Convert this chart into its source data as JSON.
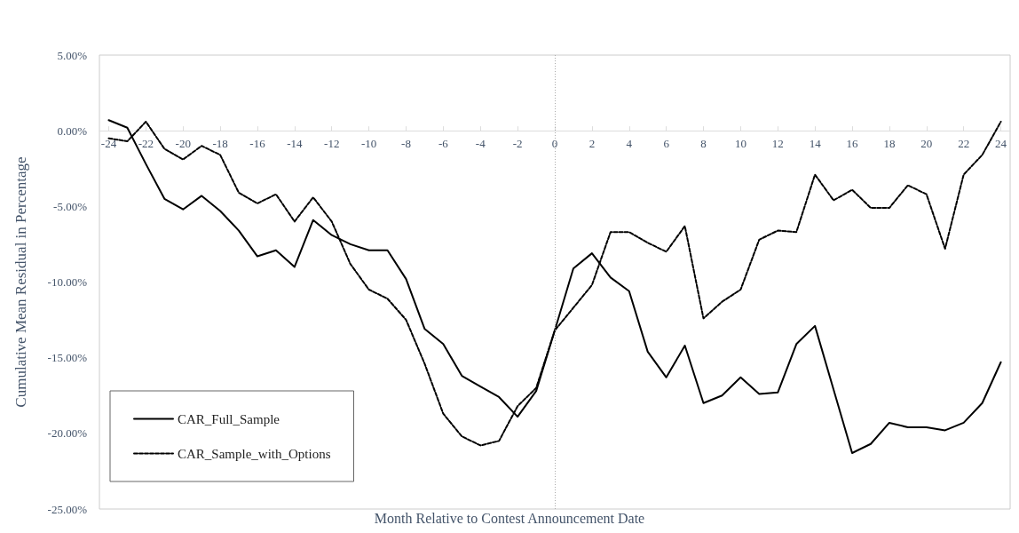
{
  "chart_data": {
    "type": "line",
    "xlabel": "Month Relative to Contest Announcement Date",
    "ylabel": "Cumulative Mean Residual in Percentage",
    "x": [
      -24,
      -23,
      -22,
      -21,
      -20,
      -19,
      -18,
      -17,
      -16,
      -15,
      -14,
      -13,
      -12,
      -11,
      -10,
      -9,
      -8,
      -7,
      -6,
      -5,
      -4,
      -3,
      -2,
      -1,
      0,
      1,
      2,
      3,
      4,
      5,
      6,
      7,
      8,
      9,
      10,
      11,
      12,
      13,
      14,
      15,
      16,
      17,
      18,
      19,
      20,
      21,
      22,
      23,
      24
    ],
    "series": [
      {
        "name": "CAR_Full_Sample",
        "color": "#000000",
        "line_style": "solid",
        "values": [
          0.7,
          0.2,
          -2.2,
          -4.5,
          -5.2,
          -4.3,
          -5.3,
          -6.6,
          -8.3,
          -7.9,
          -9.0,
          -5.9,
          -6.9,
          -7.5,
          -7.9,
          -7.9,
          -9.8,
          -13.1,
          -14.1,
          -16.2,
          -16.9,
          -17.6,
          -18.9,
          -17.2,
          -13.2,
          -9.1,
          -8.1,
          -9.7,
          -10.6,
          -14.6,
          -16.3,
          -14.2,
          -18.0,
          -17.5,
          -16.3,
          -17.4,
          -17.3,
          -14.1,
          -12.9,
          -17.1,
          -21.3,
          -20.7,
          -19.3,
          -19.6,
          -19.6,
          -19.8,
          -19.3,
          -18.0,
          -15.3
        ]
      },
      {
        "name": "CAR_Sample_with_Options",
        "color": "#000000",
        "line_style": "dashed",
        "values": [
          -0.5,
          -0.7,
          0.6,
          -1.2,
          -1.9,
          -1.0,
          -1.6,
          -4.1,
          -4.8,
          -4.2,
          -6.0,
          -4.4,
          -6.0,
          -8.8,
          -10.5,
          -11.1,
          -12.5,
          -15.4,
          -18.7,
          -20.2,
          -20.8,
          -20.5,
          -18.2,
          -17.0,
          -13.2,
          -11.7,
          -10.2,
          -6.7,
          -6.7,
          -7.4,
          -8.0,
          -6.3,
          -12.4,
          -11.3,
          -10.5,
          -7.2,
          -6.6,
          -6.7,
          -2.9,
          -4.6,
          -3.9,
          -5.1,
          -5.1,
          -3.6,
          -4.2,
          -7.8,
          -2.9,
          -1.6,
          0.6
        ]
      }
    ],
    "xlim": [
      -24.5,
      24.5
    ],
    "xticks": [
      -24,
      -22,
      -20,
      -18,
      -16,
      -14,
      -12,
      -10,
      -8,
      -6,
      -4,
      -2,
      0,
      2,
      4,
      6,
      8,
      10,
      12,
      14,
      16,
      18,
      20,
      22,
      24
    ],
    "ylim": [
      -25,
      5
    ],
    "yticks": [
      {
        "value": -25,
        "label": "-25.00%"
      },
      {
        "value": -20,
        "label": "-20.00%"
      },
      {
        "value": -15,
        "label": "-15.00%"
      },
      {
        "value": -10,
        "label": "-10.00%"
      },
      {
        "value": -5,
        "label": "-5.00%"
      },
      {
        "value": 0,
        "label": "0.00%"
      },
      {
        "value": 5,
        "label": "5.00%"
      }
    ],
    "ref_lines": [
      {
        "axis": "x",
        "value": 0,
        "color": "#aaaaaa",
        "line_style": "dotted"
      }
    ],
    "grid": false,
    "marker": "none",
    "legend": "bottom left"
  }
}
